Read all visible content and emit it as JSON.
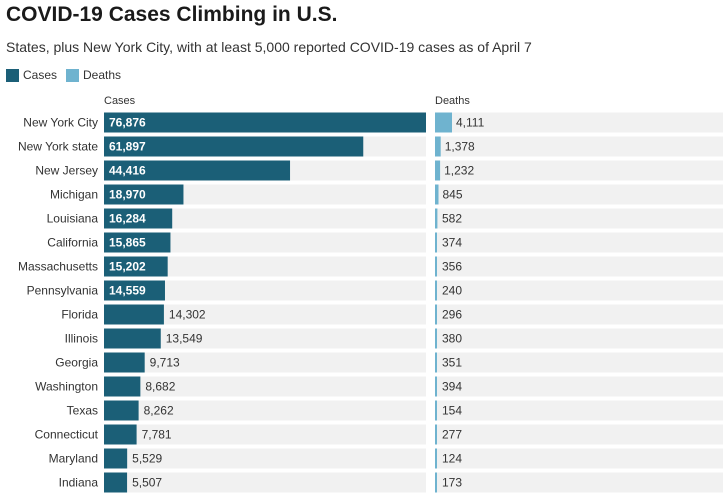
{
  "chart_data": {
    "type": "bar",
    "title": "COVID-19 Cases Climbing in U.S.",
    "subtitle": "States, plus New York City, with at least 5,000 reported COVID-19 cases as of April 7",
    "categories": [
      "New York City",
      "New York state",
      "New Jersey",
      "Michigan",
      "Louisiana",
      "California",
      "Massachusetts",
      "Pennsylvania",
      "Florida",
      "Illinois",
      "Georgia",
      "Washington",
      "Texas",
      "Connecticut",
      "Maryland",
      "Indiana"
    ],
    "series": [
      {
        "name": "Cases",
        "values": [
          76876,
          61897,
          44416,
          18970,
          16284,
          15865,
          15202,
          14559,
          14302,
          13549,
          9713,
          8682,
          8262,
          7781,
          5529,
          5507
        ]
      },
      {
        "name": "Deaths",
        "values": [
          4111,
          1378,
          1232,
          845,
          582,
          374,
          356,
          240,
          296,
          380,
          351,
          394,
          154,
          277,
          124,
          173
        ]
      }
    ],
    "labels": {
      "cases": [
        "76,876",
        "61,897",
        "44,416",
        "18,970",
        "16,284",
        "15,865",
        "15,202",
        "14,559",
        "14,302",
        "13,549",
        "9,713",
        "8,682",
        "8,262",
        "7,781",
        "5,529",
        "5,507"
      ],
      "deaths": [
        "4,111",
        "1,378",
        "1,232",
        "845",
        "582",
        "374",
        "356",
        "240",
        "296",
        "380",
        "351",
        "394",
        "154",
        "277",
        "124",
        "173"
      ]
    },
    "column_headers": {
      "cases": "Cases",
      "deaths": "Deaths"
    },
    "legend": [
      {
        "label": "Cases",
        "color": "#1b5f77"
      },
      {
        "label": "Deaths",
        "color": "#6fb3cf"
      }
    ],
    "colors": {
      "cases": "#1b5f77",
      "deaths": "#6fb3cf",
      "row_background": "#f1f1f1"
    },
    "legend_position": "top-left",
    "grid": false
  }
}
